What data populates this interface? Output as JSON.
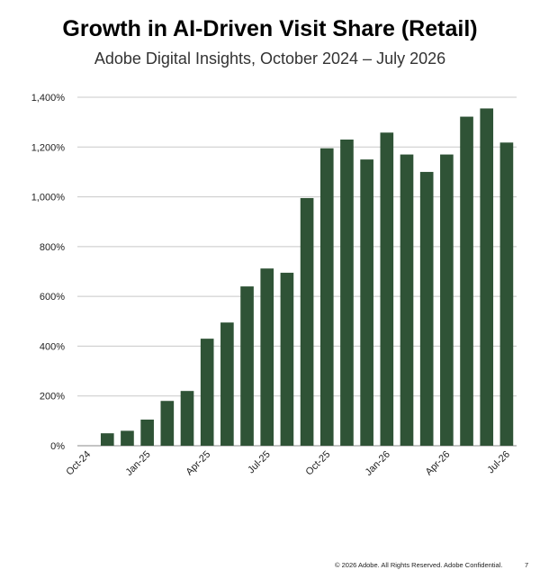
{
  "title": "Growth in AI-Driven Visit Share (Retail)",
  "subtitle": "Adobe Digital Insights, October 2024 – July 2026",
  "footer": {
    "copyright": "© 2026 Adobe. All Rights Reserved. Adobe Confidential.",
    "page_number": "7"
  },
  "colors": {
    "bar": "#2f5336",
    "grid": "#c8c8c8",
    "axis": "#888888",
    "text": "#222222"
  },
  "chart_data": {
    "type": "bar",
    "title": "Growth in AI-Driven Visit Share (Retail)",
    "subtitle": "Adobe Digital Insights, October 2024 – July 2026",
    "categories": [
      "Oct-24",
      "Nov-24",
      "Dec-24",
      "Jan-25",
      "Feb-25",
      "Mar-25",
      "Apr-25",
      "May-25",
      "Jun-25",
      "Jul-25",
      "Aug-25",
      "Sep-25",
      "Oct-25",
      "Nov-25",
      "Dec-25",
      "Jan-26",
      "Feb-26",
      "Mar-26",
      "Apr-26",
      "May-26",
      "Jun-26",
      "Jul-26"
    ],
    "values": [
      0,
      50,
      60,
      105,
      180,
      220,
      430,
      495,
      640,
      712,
      695,
      995,
      1195,
      1230,
      1150,
      1258,
      1170,
      1100,
      1170,
      1322,
      1355,
      1218
    ],
    "x_tick_labels": [
      "Oct-24",
      "Jan-25",
      "Apr-25",
      "Jul-25",
      "Oct-25",
      "Jan-26",
      "Apr-26",
      "Jul-26"
    ],
    "y_ticks": [
      0,
      200,
      400,
      600,
      800,
      1000,
      1200,
      1400
    ],
    "y_tick_labels": [
      "0%",
      "200%",
      "400%",
      "600%",
      "800%",
      "1,000%",
      "1,200%",
      "1,400%"
    ],
    "ylim": [
      0,
      1400
    ],
    "xlabel": "",
    "ylabel": "",
    "grid": true,
    "legend": "none"
  }
}
